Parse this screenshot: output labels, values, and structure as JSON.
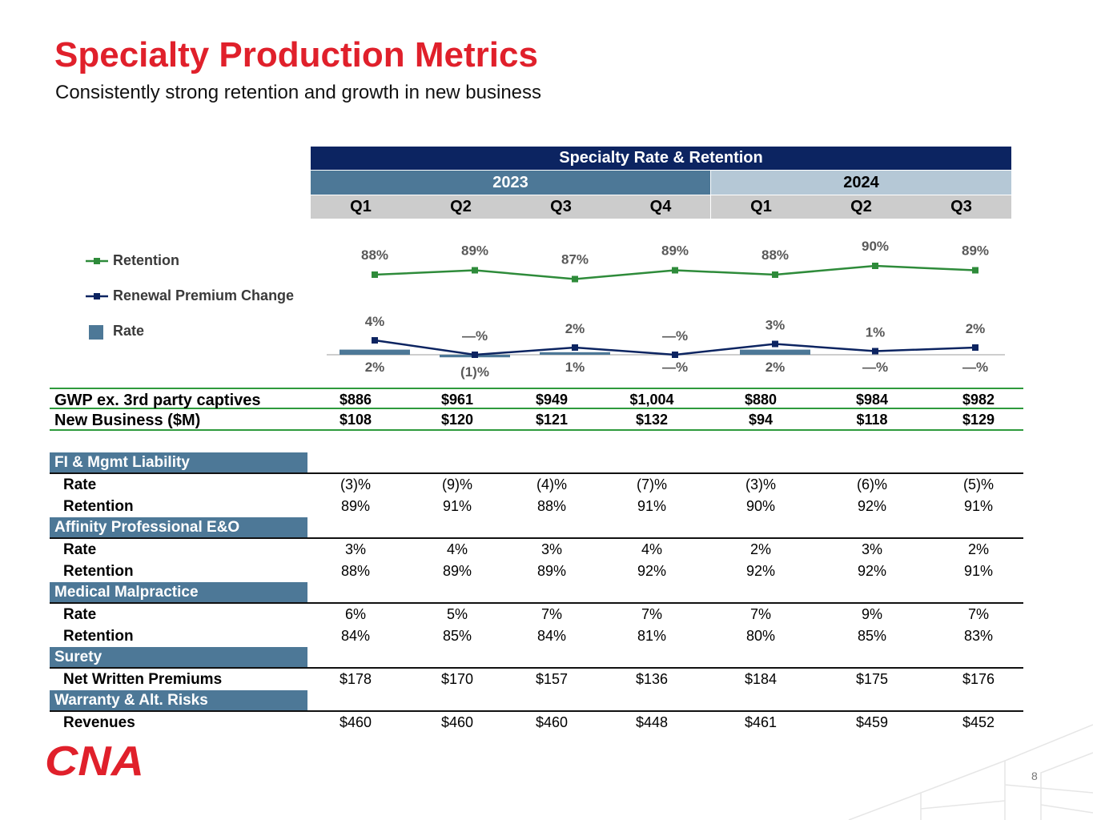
{
  "header": {
    "title": "Specialty Production Metrics",
    "subtitle": "Consistently strong retention and growth in new business"
  },
  "table_header": {
    "title": "Specialty Rate & Retention",
    "years": [
      "2023",
      "2024"
    ],
    "quarters": [
      "Q1",
      "Q2",
      "Q3",
      "Q4",
      "Q1",
      "Q2",
      "Q3"
    ]
  },
  "legend": {
    "retention": "Retention",
    "renewal": "Renewal Premium Change",
    "rate": "Rate"
  },
  "chart_data": {
    "type": "line",
    "title": "Specialty Rate & Retention",
    "categories": [
      "2023 Q1",
      "2023 Q2",
      "2023 Q3",
      "2023 Q4",
      "2024 Q1",
      "2024 Q2",
      "2024 Q3"
    ],
    "series": [
      {
        "name": "Retention",
        "kind": "line",
        "color": "#2e8b3a",
        "values": [
          88,
          89,
          87,
          89,
          88,
          90,
          89
        ],
        "labels": [
          "88%",
          "89%",
          "87%",
          "89%",
          "88%",
          "90%",
          "89%"
        ]
      },
      {
        "name": "Renewal Premium Change",
        "kind": "line",
        "color": "#0c2461",
        "values": [
          4,
          0,
          2,
          0,
          3,
          1,
          2
        ],
        "labels": [
          "4%",
          "—%",
          "2%",
          "—%",
          "3%",
          "1%",
          "2%"
        ]
      },
      {
        "name": "Rate",
        "kind": "bar",
        "color": "#4d7897",
        "values": [
          2,
          -1,
          1,
          0,
          2,
          0,
          0
        ],
        "labels": [
          "2%",
          "(1)%",
          "1%",
          "—%",
          "2%",
          "—%",
          "—%"
        ]
      }
    ]
  },
  "summary": [
    {
      "label": "GWP ex. 3rd party captives",
      "values": [
        "$886",
        "$961",
        "$949",
        "$1,004",
        "$880",
        "$984",
        "$982"
      ]
    },
    {
      "label": "New Business ($M)",
      "values": [
        "$108",
        "$120",
        "$121",
        "$132",
        "$94",
        "$118",
        "$129"
      ]
    }
  ],
  "sections": [
    {
      "name": "FI & Mgmt Liability",
      "rows": [
        {
          "label": "Rate",
          "values": [
            "(3)%",
            "(9)%",
            "(4)%",
            "(7)%",
            "(3)%",
            "(6)%",
            "(5)%"
          ]
        },
        {
          "label": "Retention",
          "values": [
            "89%",
            "91%",
            "88%",
            "91%",
            "90%",
            "92%",
            "91%"
          ]
        }
      ]
    },
    {
      "name": "Affinity Professional E&O",
      "rows": [
        {
          "label": "Rate",
          "values": [
            "3%",
            "4%",
            "3%",
            "4%",
            "2%",
            "3%",
            "2%"
          ]
        },
        {
          "label": "Retention",
          "values": [
            "88%",
            "89%",
            "89%",
            "92%",
            "92%",
            "92%",
            "91%"
          ]
        }
      ]
    },
    {
      "name": "Medical Malpractice",
      "rows": [
        {
          "label": "Rate",
          "values": [
            "6%",
            "5%",
            "7%",
            "7%",
            "7%",
            "9%",
            "7%"
          ]
        },
        {
          "label": "Retention",
          "values": [
            "84%",
            "85%",
            "84%",
            "81%",
            "80%",
            "85%",
            "83%"
          ]
        }
      ]
    },
    {
      "name": "Surety",
      "rows": [
        {
          "label": "Net Written Premiums",
          "values": [
            "$178",
            "$170",
            "$157",
            "$136",
            "$184",
            "$175",
            "$176"
          ]
        }
      ]
    },
    {
      "name": "Warranty & Alt. Risks",
      "rows": [
        {
          "label": "Revenues",
          "values": [
            "$460",
            "$460",
            "$460",
            "$448",
            "$461",
            "$459",
            "$452"
          ]
        }
      ]
    }
  ],
  "footer": {
    "logo_text": "CNA",
    "page_number": "8"
  },
  "colors": {
    "brand_red": "#e0202b",
    "navy": "#0c2461",
    "steel": "#4d7897",
    "light_steel": "#b5c8d6",
    "green": "#2e8b3a"
  }
}
